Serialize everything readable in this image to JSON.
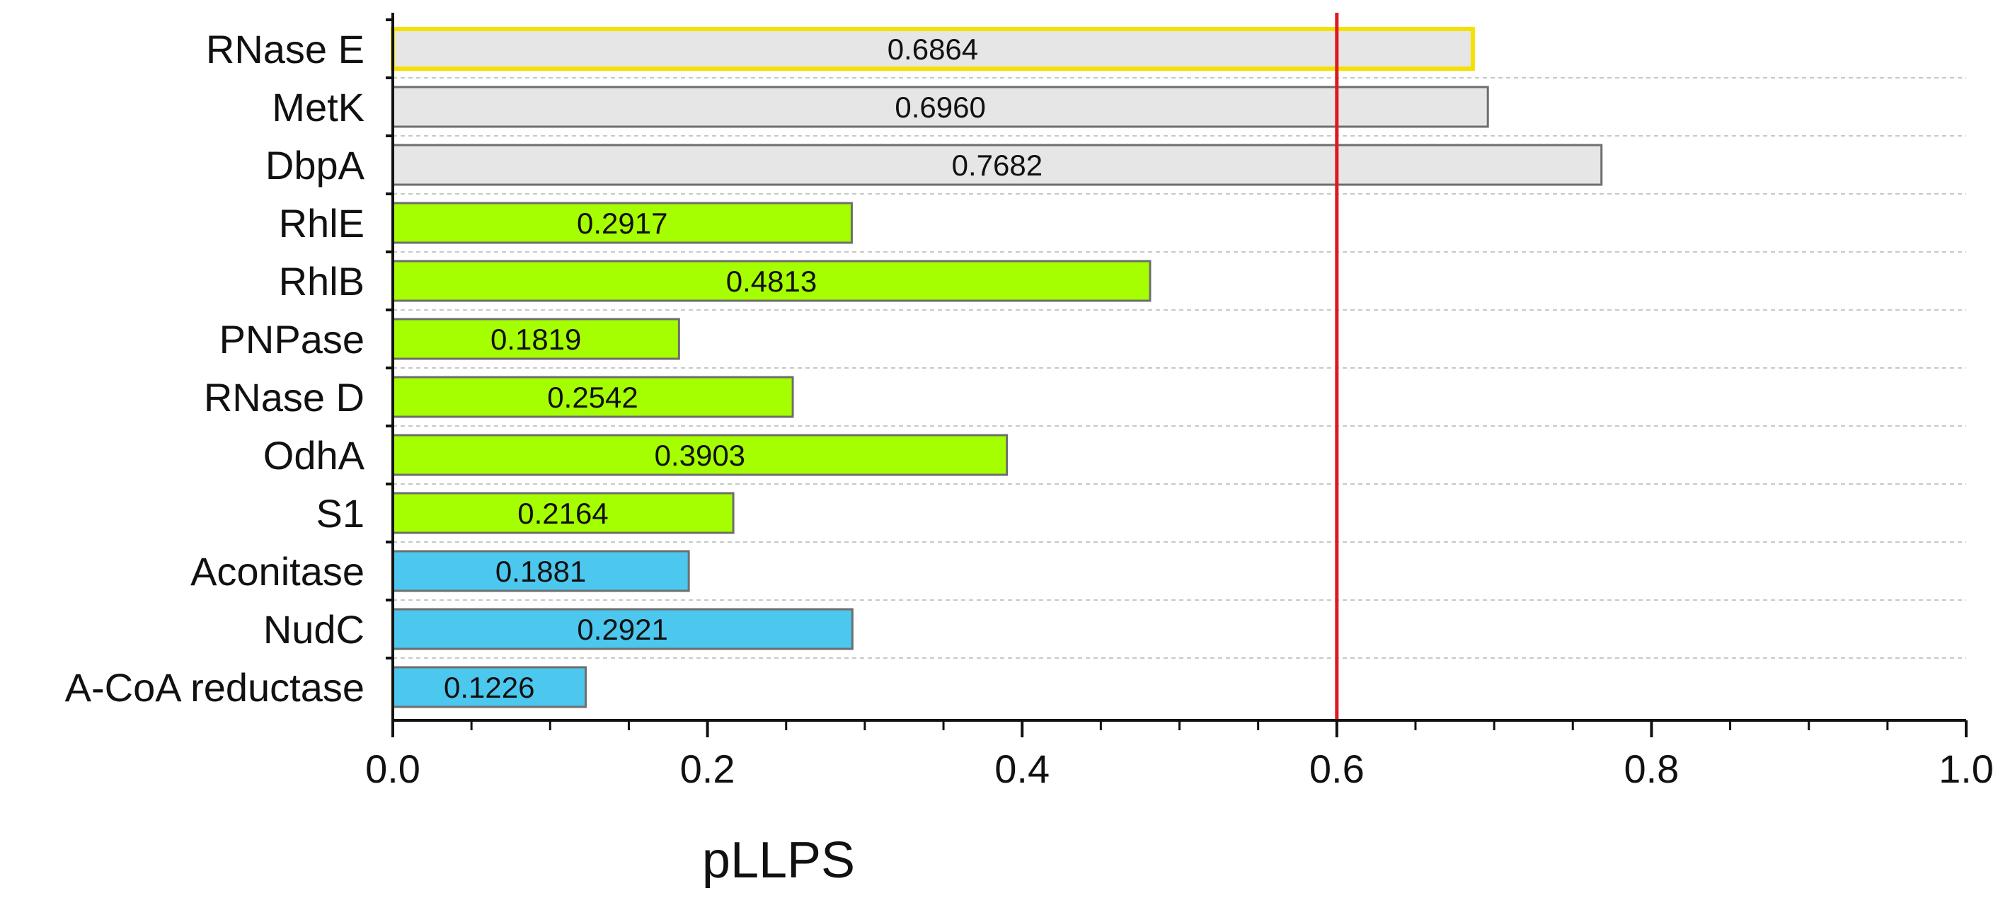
{
  "chart_data": {
    "type": "bar",
    "orientation": "horizontal",
    "title": "",
    "xlabel": "pLLPS",
    "ylabel": "",
    "xlim": [
      0.0,
      1.0
    ],
    "xticks": [
      "0.0",
      "0.2",
      "0.4",
      "0.6",
      "0.8",
      "1.0"
    ],
    "categories": [
      "RNase E",
      "MetK",
      "DbpA",
      "RhlE",
      "RhlB",
      "PNPase",
      "RNase D",
      "OdhA",
      "S1",
      "Aconitase",
      "NudC",
      "A-CoA reductase"
    ],
    "values": [
      0.6864,
      0.696,
      0.7682,
      0.2917,
      0.4813,
      0.1819,
      0.2542,
      0.3903,
      0.2164,
      0.1881,
      0.2921,
      0.1226
    ],
    "value_labels": [
      "0.6864",
      "0.6960",
      "0.7682",
      "0.2917",
      "0.4813",
      "0.1819",
      "0.2542",
      "0.3903",
      "0.2164",
      "0.1881",
      "0.2921",
      "0.1226"
    ],
    "groups": [
      "grey",
      "grey",
      "grey",
      "green",
      "green",
      "green",
      "green",
      "green",
      "green",
      "blue",
      "blue",
      "blue"
    ],
    "highlight": "RNase E",
    "threshold": 0.6,
    "grid": "dashed horizontal",
    "legend": "none"
  },
  "colors": {
    "grey": "#e6e6e6",
    "green": "#a6ff00",
    "blue": "#4cc7ee",
    "bar_edge": "#6e6e6e",
    "highlight_edge": "#f5e000",
    "threshold_line": "#e0191f",
    "grid": "#c8c8c8",
    "axis": "#111111"
  }
}
